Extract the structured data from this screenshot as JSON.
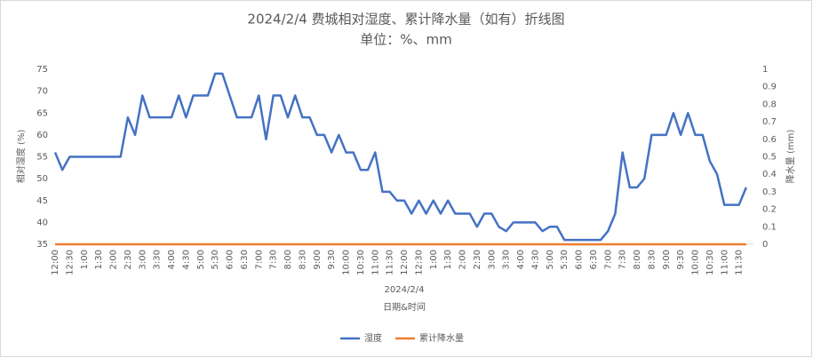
{
  "chart_data": {
    "type": "line",
    "title": "2024/2/4 费城相对湿度、累计降水量（如有）折线图",
    "subtitle": "单位：%、mm",
    "x_group_label": "2024/2/4",
    "x_axis_label": "日期&时间",
    "y_axis_label": "相对湿度 (%)",
    "y2_axis_label": "降水量 (mm)",
    "categories": [
      "12:00",
      null,
      "12:30",
      null,
      "1:00",
      null,
      "1:30",
      null,
      "2:00",
      null,
      "2:30",
      null,
      "3:00",
      null,
      "3:30",
      null,
      "4:00",
      null,
      "4:30",
      null,
      "5:00",
      null,
      "5:30",
      null,
      "6:00",
      null,
      "6:30",
      null,
      "7:00",
      null,
      "7:30",
      null,
      "8:00",
      null,
      "8:30",
      null,
      "9:00",
      null,
      "9:30",
      null,
      "10:00",
      null,
      "10:30",
      null,
      "11:00",
      null,
      "11:30",
      null,
      "12:00",
      null,
      "12:30",
      null,
      "1:00",
      null,
      "1:30",
      null,
      "2:00",
      null,
      "2:30",
      null,
      "3:00",
      null,
      "3:30",
      null,
      "4:00",
      null,
      "4:30",
      null,
      "5:00",
      null,
      "5:30",
      null,
      "6:00",
      null,
      "6:30",
      null,
      "7:00",
      null,
      "7:30",
      null,
      "8:00",
      null,
      "8:30",
      null,
      "9:00",
      null,
      "9:30",
      null,
      "10:00",
      null,
      "10:30",
      null,
      "11:00",
      null,
      "11:30",
      null
    ],
    "series": [
      {
        "name": "湿度",
        "color": "#4472c4",
        "values": [
          56,
          52,
          55,
          55,
          55,
          55,
          55,
          55,
          55,
          55,
          64,
          60,
          69,
          64,
          64,
          64,
          64,
          69,
          64,
          69,
          69,
          69,
          74,
          74,
          69,
          64,
          64,
          64,
          69,
          59,
          69,
          69,
          64,
          69,
          64,
          64,
          60,
          60,
          56,
          60,
          56,
          56,
          52,
          52,
          56,
          47,
          47,
          45,
          45,
          42,
          45,
          42,
          45,
          42,
          45,
          42,
          42,
          42,
          39,
          42,
          42,
          39,
          38,
          40,
          40,
          40,
          40,
          38,
          39,
          39,
          36,
          36,
          36,
          36,
          36,
          36,
          38,
          42,
          56,
          48,
          48,
          50,
          60,
          60,
          60,
          65,
          60,
          65,
          60,
          60,
          54,
          51,
          44,
          44,
          44,
          48
        ]
      },
      {
        "name": "累计降水量",
        "color": "#ed7d31",
        "axis": "y2",
        "values": [
          0,
          0,
          0,
          0,
          0,
          0,
          0,
          0,
          0,
          0,
          0,
          0,
          0,
          0,
          0,
          0,
          0,
          0,
          0,
          0,
          0,
          0,
          0,
          0,
          0,
          0,
          0,
          0,
          0,
          0,
          0,
          0,
          0,
          0,
          0,
          0,
          0,
          0,
          0,
          0,
          0,
          0,
          0,
          0,
          0,
          0,
          0,
          0,
          0,
          0,
          0,
          0,
          0,
          0,
          0,
          0,
          0,
          0,
          0,
          0,
          0,
          0,
          0,
          0,
          0,
          0,
          0,
          0,
          0,
          0,
          0,
          0,
          0,
          0,
          0,
          0,
          0,
          0,
          0,
          0,
          0,
          0,
          0,
          0,
          0,
          0,
          0,
          0,
          0,
          0,
          0,
          0,
          0,
          0,
          0,
          0
        ]
      }
    ],
    "ylim": [
      35,
      75
    ],
    "yticks": [
      35,
      40,
      45,
      50,
      55,
      60,
      65,
      70,
      75
    ],
    "y2lim": [
      0,
      1
    ],
    "y2ticks": [
      0,
      0.1,
      0.2,
      0.3,
      0.4,
      0.5,
      0.6,
      0.7,
      0.8,
      0.9,
      1
    ],
    "grid": false,
    "legend": "bottom"
  }
}
